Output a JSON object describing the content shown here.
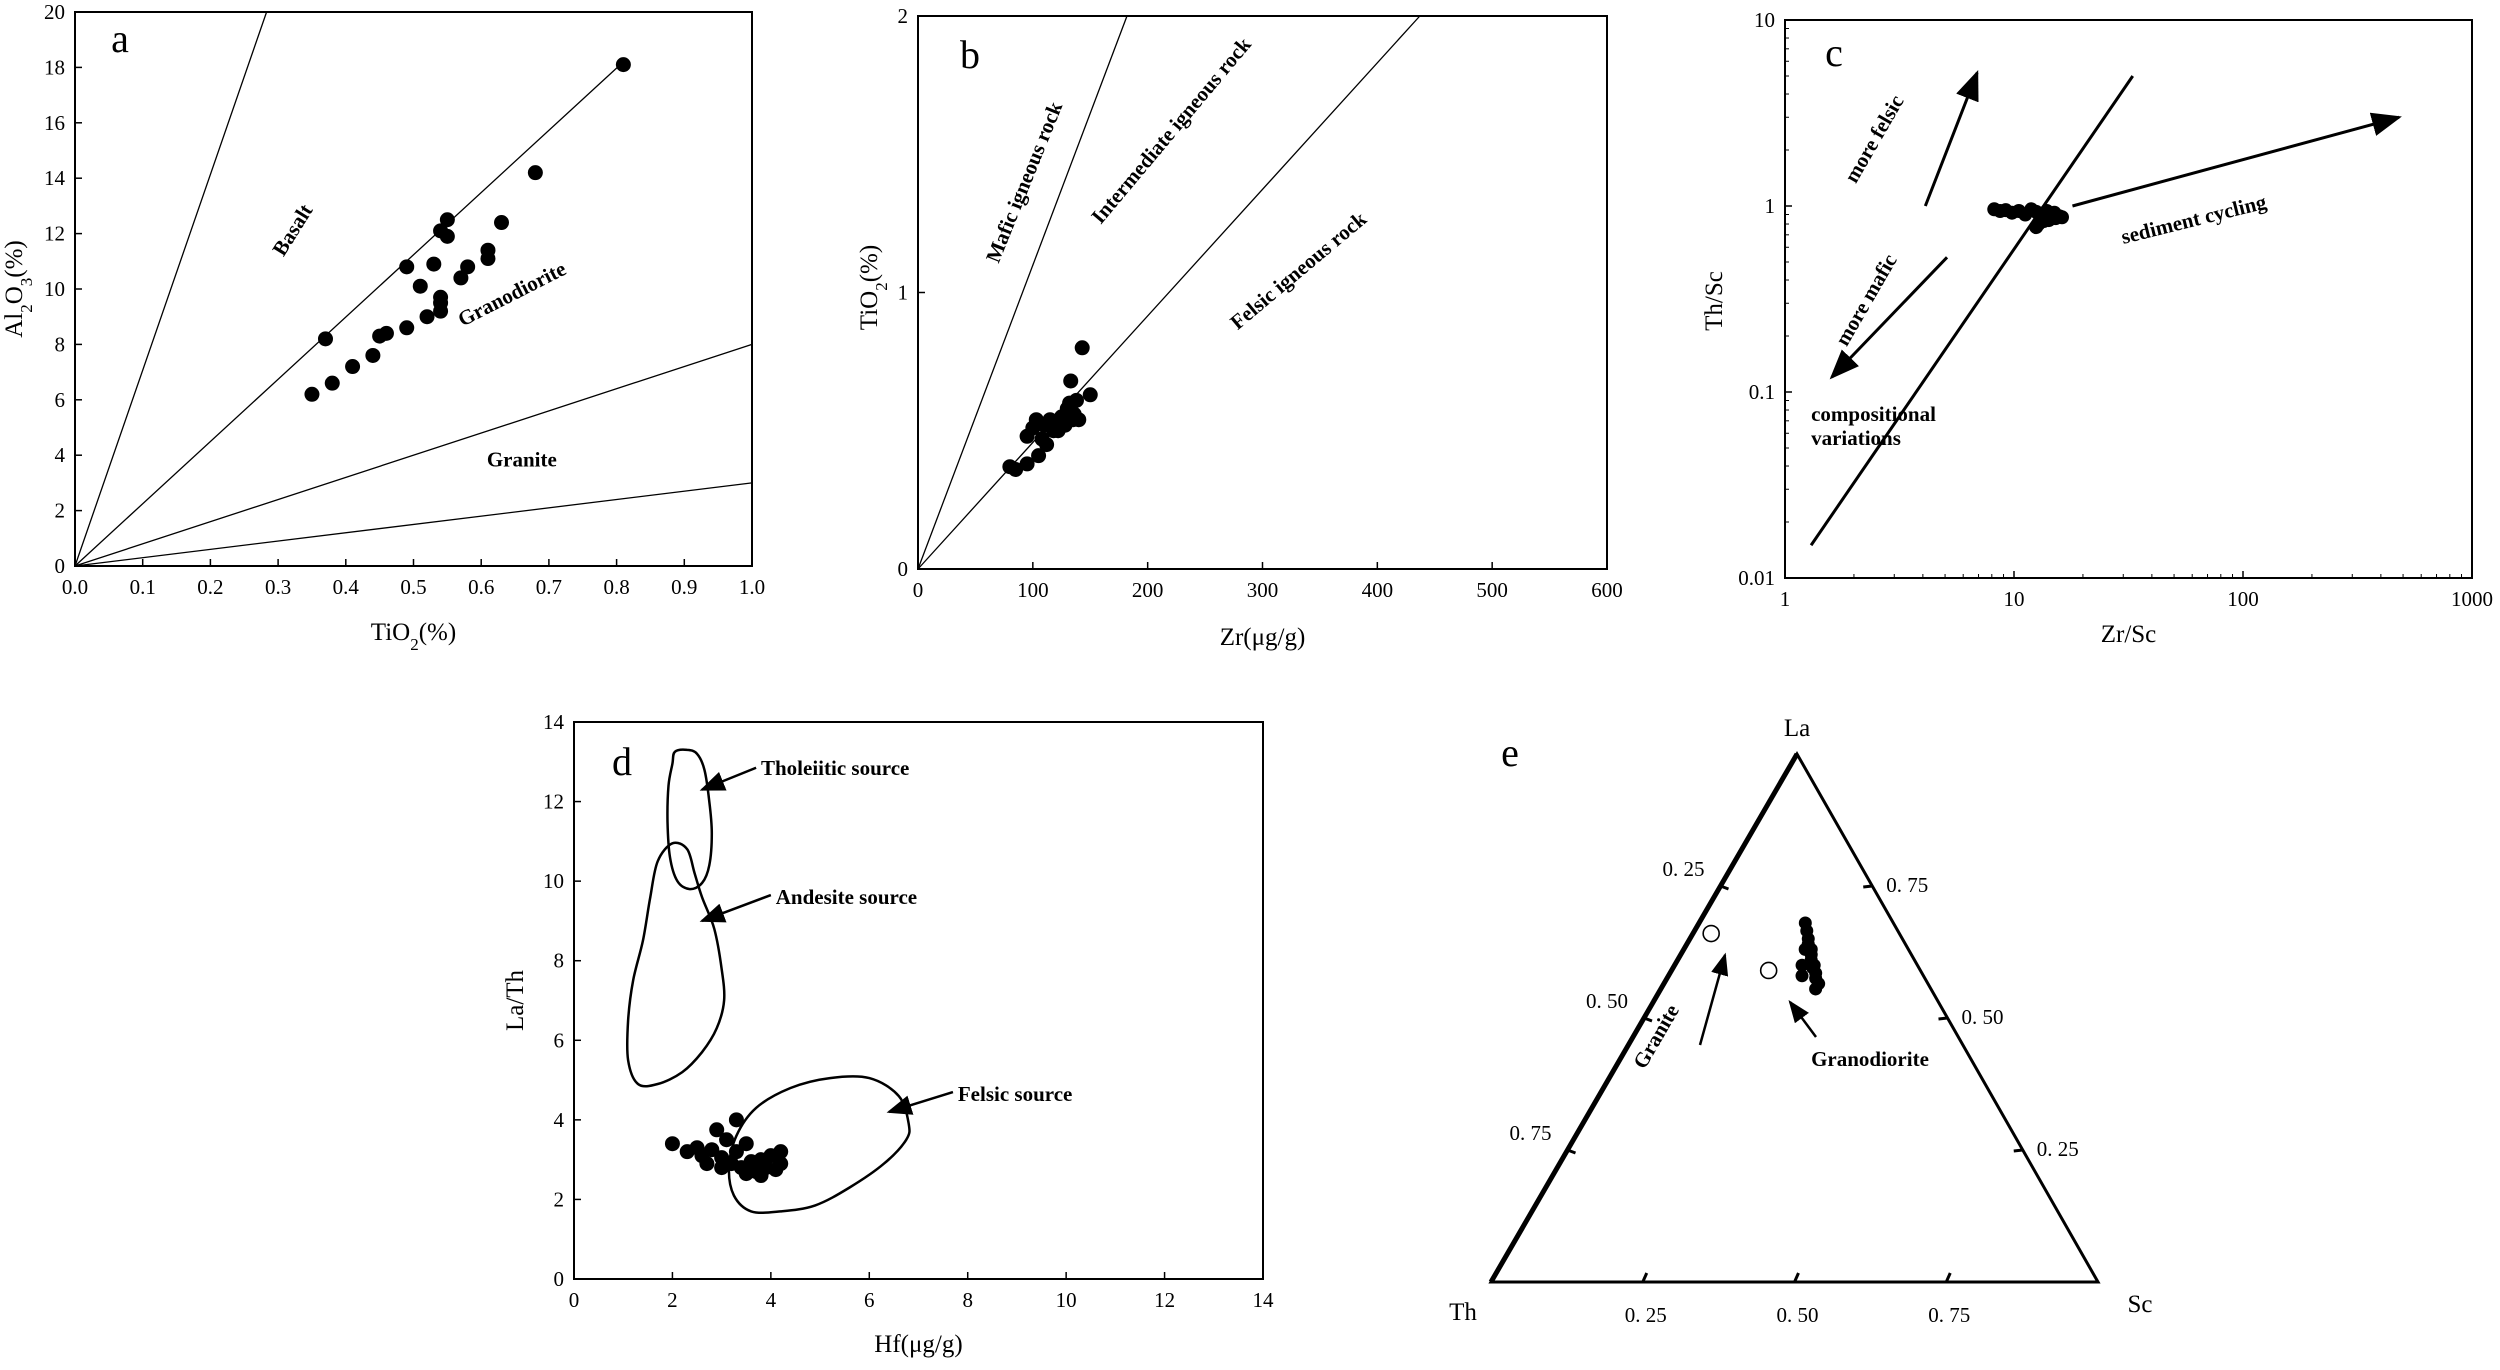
{
  "chart_data": [
    {
      "panel": "a",
      "type": "scatter",
      "xlabel": "TiO2(%)",
      "ylabel": "Al2O3(%)",
      "xlim": [
        0,
        1.0
      ],
      "ylim": [
        0,
        20
      ],
      "xticks": [
        "0.0",
        "0.1",
        "0.2",
        "0.3",
        "0.4",
        "0.5",
        "0.6",
        "0.7",
        "0.8",
        "0.9",
        "1.0"
      ],
      "yticks": [
        "0",
        "2",
        "4",
        "6",
        "8",
        "10",
        "12",
        "14",
        "16",
        "18",
        "20"
      ],
      "lines": [
        {
          "x": [
            0,
            0.283
          ],
          "y": [
            0,
            20
          ]
        },
        {
          "x": [
            0,
            0.81
          ],
          "y": [
            0,
            18.2
          ]
        },
        {
          "x": [
            0,
            1.0
          ],
          "y": [
            0,
            8
          ]
        },
        {
          "x": [
            0,
            1.0
          ],
          "y": [
            0,
            3
          ]
        }
      ],
      "fields": [
        {
          "label": "Basalt",
          "x": 0.33,
          "y": 12.0,
          "angle": -58
        },
        {
          "label": "Granodiorite",
          "x": 0.65,
          "y": 9.6,
          "angle": -27
        },
        {
          "label": "Granite",
          "x": 0.66,
          "y": 3.6,
          "angle": 0
        }
      ],
      "points": [
        [
          0.35,
          6.2
        ],
        [
          0.37,
          8.2
        ],
        [
          0.38,
          6.6
        ],
        [
          0.41,
          7.2
        ],
        [
          0.44,
          7.6
        ],
        [
          0.45,
          8.3
        ],
        [
          0.46,
          8.4
        ],
        [
          0.49,
          8.6
        ],
        [
          0.49,
          10.8
        ],
        [
          0.51,
          10.1
        ],
        [
          0.52,
          9.0
        ],
        [
          0.53,
          10.9
        ],
        [
          0.54,
          9.2
        ],
        [
          0.54,
          9.5
        ],
        [
          0.54,
          9.7
        ],
        [
          0.54,
          12.1
        ],
        [
          0.55,
          11.9
        ],
        [
          0.55,
          12.5
        ],
        [
          0.57,
          10.4
        ],
        [
          0.58,
          10.8
        ],
        [
          0.61,
          11.1
        ],
        [
          0.61,
          11.4
        ],
        [
          0.63,
          12.4
        ],
        [
          0.68,
          14.2
        ],
        [
          0.81,
          18.1
        ]
      ]
    },
    {
      "panel": "b",
      "type": "scatter",
      "xlabel": "Zr(μg/g)",
      "ylabel": "TiO2(%)",
      "xlim": [
        0,
        600
      ],
      "ylim": [
        0,
        2
      ],
      "xticks": [
        "0",
        "100",
        "200",
        "300",
        "400",
        "500",
        "600"
      ],
      "yticks": [
        "0",
        "1",
        "2"
      ],
      "lines": [
        {
          "x": [
            0,
            182
          ],
          "y": [
            0,
            2
          ]
        },
        {
          "x": [
            0,
            437
          ],
          "y": [
            0,
            2
          ]
        }
      ],
      "fields": [
        {
          "label": "Mafic igneous rock",
          "x": 98,
          "y": 1.39,
          "angle": -68
        },
        {
          "label": "Intermediate igneous rock",
          "x": 225,
          "y": 1.57,
          "angle": -50
        },
        {
          "label": "Felsic igneous rock",
          "x": 335,
          "y": 1.06,
          "angle": -40
        }
      ],
      "points": [
        [
          80,
          0.37
        ],
        [
          85,
          0.36
        ],
        [
          95,
          0.38
        ],
        [
          95,
          0.48
        ],
        [
          100,
          0.51
        ],
        [
          103,
          0.54
        ],
        [
          105,
          0.41
        ],
        [
          108,
          0.47
        ],
        [
          110,
          0.52
        ],
        [
          112,
          0.45
        ],
        [
          115,
          0.54
        ],
        [
          118,
          0.5
        ],
        [
          120,
          0.53
        ],
        [
          122,
          0.5
        ],
        [
          125,
          0.55
        ],
        [
          128,
          0.52
        ],
        [
          130,
          0.58
        ],
        [
          132,
          0.6
        ],
        [
          133,
          0.68
        ],
        [
          135,
          0.54
        ],
        [
          136,
          0.56
        ],
        [
          138,
          0.61
        ],
        [
          140,
          0.54
        ],
        [
          143,
          0.8
        ],
        [
          150,
          0.63
        ]
      ]
    },
    {
      "panel": "c",
      "type": "scatter",
      "xlabel": "Zr/Sc",
      "ylabel": "Th/Sc",
      "xscale": "log",
      "yscale": "log",
      "xlim": [
        1,
        1000
      ],
      "ylim": [
        0.01,
        10
      ],
      "xticks": [
        "1",
        "10",
        "100",
        "1000"
      ],
      "yticks": [
        "0.01",
        "0.1",
        "1",
        "10"
      ],
      "annotations": [
        {
          "label": "more felsic",
          "x": 2.6,
          "y": 2.2,
          "angle": -60
        },
        {
          "label": "more mafic",
          "x": 2.4,
          "y": 0.3,
          "angle": -60
        },
        {
          "label": "compositional",
          "x": 1.3,
          "y": 0.07,
          "angle": 0
        },
        {
          "label": "variations",
          "x": 1.3,
          "y": 0.052,
          "angle": 0
        },
        {
          "label": "sediment cycling",
          "x": 62,
          "y": 0.78,
          "angle": -14
        }
      ],
      "arrows": [
        {
          "from": [
            4.1,
            1.0
          ],
          "to": [
            6.9,
            5.2
          ]
        },
        {
          "from": [
            5.1,
            0.53
          ],
          "to": [
            1.6,
            0.12
          ]
        },
        {
          "from": [
            18,
            1.0
          ],
          "to": [
            480,
            3.0
          ]
        }
      ],
      "trend_line": {
        "from": [
          1.3,
          0.015
        ],
        "to": [
          33,
          5.0
        ]
      },
      "points": [
        [
          8.2,
          0.96
        ],
        [
          8.7,
          0.94
        ],
        [
          9.2,
          0.95
        ],
        [
          9.8,
          0.92
        ],
        [
          10.5,
          0.94
        ],
        [
          11.2,
          0.9
        ],
        [
          11.9,
          0.96
        ],
        [
          12.5,
          0.93
        ],
        [
          13.0,
          0.9
        ],
        [
          13.4,
          0.88
        ],
        [
          13.9,
          0.94
        ],
        [
          14.5,
          0.9
        ],
        [
          15.2,
          0.86
        ],
        [
          15.8,
          0.88
        ],
        [
          12.8,
          0.8
        ],
        [
          13.5,
          0.83
        ],
        [
          14.2,
          0.84
        ],
        [
          12.5,
          0.77
        ],
        [
          15.0,
          0.92
        ],
        [
          16.2,
          0.87
        ]
      ]
    },
    {
      "panel": "d",
      "type": "scatter",
      "xlabel": "Hf(μg/g)",
      "ylabel": "La/Th",
      "xlim": [
        0,
        14
      ],
      "ylim": [
        0,
        14
      ],
      "xticks": [
        "0",
        "2",
        "4",
        "6",
        "8",
        "10",
        "12",
        "14"
      ],
      "yticks": [
        "0",
        "2",
        "4",
        "6",
        "8",
        "10",
        "12",
        "14"
      ],
      "regions": [
        {
          "label": "Tholeiitic source",
          "text_at": [
            3.8,
            12.85
          ],
          "arrow_from": [
            3.7,
            12.85
          ],
          "arrow_to": [
            2.6,
            12.3
          ],
          "outline": [
            [
              2.05,
              13.25
            ],
            [
              2.3,
              13.3
            ],
            [
              2.5,
              13.2
            ],
            [
              2.65,
              12.8
            ],
            [
              2.75,
              12.0
            ],
            [
              2.8,
              11.2
            ],
            [
              2.75,
              10.4
            ],
            [
              2.6,
              9.95
            ],
            [
              2.35,
              9.8
            ],
            [
              2.1,
              10.0
            ],
            [
              1.95,
              10.6
            ],
            [
              1.9,
              11.5
            ],
            [
              1.92,
              12.4
            ],
            [
              2.0,
              12.95
            ]
          ]
        },
        {
          "label": "Andesite source",
          "text_at": [
            4.1,
            9.6
          ],
          "arrow_from": [
            4.0,
            9.65
          ],
          "arrow_to": [
            2.6,
            9.0
          ],
          "outline": [
            [
              2.0,
              10.95
            ],
            [
              2.3,
              10.8
            ],
            [
              2.45,
              10.2
            ],
            [
              2.6,
              9.6
            ],
            [
              2.85,
              8.8
            ],
            [
              3.0,
              7.8
            ],
            [
              3.05,
              7.0
            ],
            [
              2.9,
              6.3
            ],
            [
              2.6,
              5.7
            ],
            [
              2.2,
              5.2
            ],
            [
              1.7,
              4.9
            ],
            [
              1.3,
              4.9
            ],
            [
              1.1,
              5.5
            ],
            [
              1.1,
              6.5
            ],
            [
              1.2,
              7.5
            ],
            [
              1.4,
              8.5
            ],
            [
              1.55,
              9.6
            ],
            [
              1.7,
              10.5
            ]
          ]
        },
        {
          "label": "Felsic source",
          "text_at": [
            7.8,
            4.65
          ],
          "arrow_from": [
            7.7,
            4.7
          ],
          "arrow_to": [
            6.4,
            4.2
          ],
          "outline": [
            [
              3.7,
              4.3
            ],
            [
              4.4,
              4.8
            ],
            [
              5.2,
              5.05
            ],
            [
              6.0,
              5.05
            ],
            [
              6.6,
              4.6
            ],
            [
              6.8,
              3.9
            ],
            [
              6.75,
              3.5
            ],
            [
              6.3,
              2.9
            ],
            [
              5.6,
              2.3
            ],
            [
              4.9,
              1.85
            ],
            [
              4.2,
              1.7
            ],
            [
              3.6,
              1.7
            ],
            [
              3.25,
              2.1
            ],
            [
              3.15,
              2.8
            ],
            [
              3.3,
              3.6
            ]
          ]
        }
      ],
      "points": [
        [
          2.0,
          3.4
        ],
        [
          2.3,
          3.2
        ],
        [
          2.6,
          3.1
        ],
        [
          2.7,
          2.9
        ],
        [
          2.8,
          3.25
        ],
        [
          3.0,
          2.8
        ],
        [
          2.9,
          3.75
        ],
        [
          3.1,
          3.5
        ],
        [
          3.2,
          2.9
        ],
        [
          3.3,
          4.0
        ],
        [
          3.3,
          3.2
        ],
        [
          3.4,
          2.8
        ],
        [
          3.5,
          3.4
        ],
        [
          3.6,
          2.95
        ],
        [
          3.7,
          2.7
        ],
        [
          3.8,
          3.0
        ],
        [
          3.9,
          2.8
        ],
        [
          4.0,
          3.1
        ],
        [
          4.1,
          2.75
        ],
        [
          4.2,
          2.9
        ],
        [
          4.2,
          3.2
        ],
        [
          3.5,
          2.65
        ],
        [
          3.0,
          3.05
        ],
        [
          2.5,
          3.3
        ],
        [
          3.8,
          2.6
        ]
      ]
    },
    {
      "panel": "e",
      "type": "ternary",
      "vertices": {
        "top": "La",
        "left": "Th",
        "right": "Sc"
      },
      "left_ticks": [
        "0. 25",
        "0. 50",
        "0. 75"
      ],
      "right_ticks": [
        "0. 75",
        "0. 50",
        "0. 25"
      ],
      "bottom_ticks": [
        "0. 25",
        "0. 50",
        "0. 75"
      ],
      "fields": [
        {
          "label": "Granite",
          "angle": -60
        },
        {
          "label": "Granodiorite",
          "angle": 0
        }
      ],
      "open_points": [
        {
          "La": 0.66,
          "Th": 0.31,
          "Sc": 0.03
        },
        {
          "La": 0.59,
          "Th": 0.25,
          "Sc": 0.16
        }
      ],
      "points": [
        {
          "La": 0.68,
          "Th": 0.145,
          "Sc": 0.175
        },
        {
          "La": 0.665,
          "Th": 0.15,
          "Sc": 0.185
        },
        {
          "La": 0.65,
          "Th": 0.155,
          "Sc": 0.195
        },
        {
          "La": 0.64,
          "Th": 0.16,
          "Sc": 0.2
        },
        {
          "La": 0.63,
          "Th": 0.16,
          "Sc": 0.21
        },
        {
          "La": 0.62,
          "Th": 0.165,
          "Sc": 0.215
        },
        {
          "La": 0.61,
          "Th": 0.17,
          "Sc": 0.22
        },
        {
          "La": 0.6,
          "Th": 0.17,
          "Sc": 0.23
        },
        {
          "La": 0.595,
          "Th": 0.175,
          "Sc": 0.23
        },
        {
          "La": 0.585,
          "Th": 0.175,
          "Sc": 0.24
        },
        {
          "La": 0.575,
          "Th": 0.18,
          "Sc": 0.245
        },
        {
          "La": 0.565,
          "Th": 0.18,
          "Sc": 0.255
        },
        {
          "La": 0.555,
          "Th": 0.19,
          "Sc": 0.255
        },
        {
          "La": 0.63,
          "Th": 0.17,
          "Sc": 0.2
        },
        {
          "La": 0.6,
          "Th": 0.19,
          "Sc": 0.21
        },
        {
          "La": 0.58,
          "Th": 0.2,
          "Sc": 0.22
        }
      ]
    }
  ]
}
